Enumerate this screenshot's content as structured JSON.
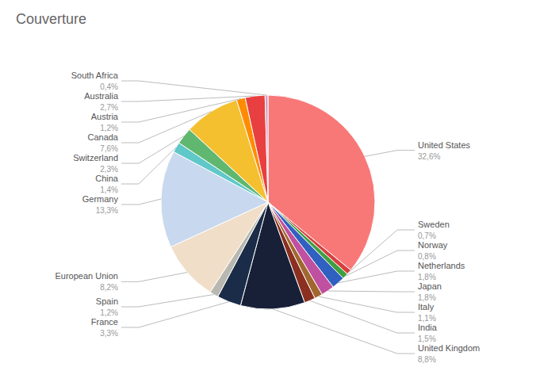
{
  "chart_data": {
    "type": "pie",
    "title": "Couverture",
    "categories": [
      "United States",
      "Sweden",
      "Norway",
      "Netherlands",
      "Japan",
      "Italy",
      "India",
      "United Kingdom",
      "France",
      "Spain",
      "European Union",
      "Germany",
      "China",
      "Switzerland",
      "Canada",
      "Austria",
      "Australia",
      "South Africa"
    ],
    "values": [
      32.6,
      0.7,
      0.8,
      1.8,
      1.8,
      1.1,
      1.5,
      8.8,
      3.3,
      1.2,
      8.2,
      13.3,
      1.4,
      2.3,
      7.6,
      1.2,
      2.7,
      0.4
    ],
    "value_labels": [
      "32,6%",
      "0,7%",
      "0,8%",
      "1,8%",
      "1,8%",
      "1,1%",
      "1,5%",
      "8,8%",
      "3,3%",
      "1,2%",
      "8,2%",
      "13,3%",
      "1,4%",
      "2,3%",
      "7,6%",
      "1,2%",
      "2,7%",
      "0,4%"
    ],
    "colors": [
      "#F87878",
      "#D84040",
      "#40A040",
      "#3060C0",
      "#C050A0",
      "#A06830",
      "#8B3020",
      "#182038",
      "#1A2C48",
      "#B8B8B0",
      "#F0DEC8",
      "#C8D8EE",
      "#60C8C8",
      "#60B870",
      "#F5C030",
      "#FF8C00",
      "#E84040",
      "#D4A0C0"
    ]
  }
}
